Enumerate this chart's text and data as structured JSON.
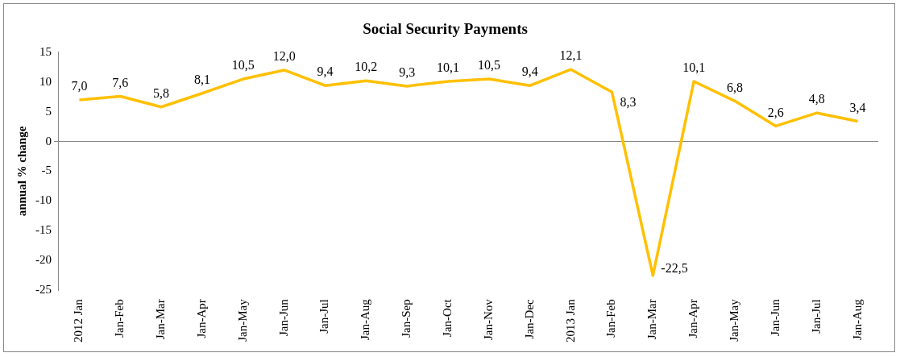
{
  "chart_data": {
    "type": "line",
    "title": "Social Security Payments",
    "ylabel": "annual % change",
    "categories": [
      "2012 Jan",
      "Jan-Feb",
      "Jan-Mar",
      "Jan-Apr",
      "Jan-May",
      "Jan-Jun",
      "Jan-Jul",
      "Jan-Aug",
      "Jan-Sep",
      "Jan-Oct",
      "Jan-Nov",
      "Jan-Dec",
      "2013 Jan",
      "Jan-Feb",
      "Jan-Mar",
      "Jan-Apr",
      "Jan-May",
      "Jan-Jun",
      "Jan-Jul",
      "Jan-Aug"
    ],
    "series": [
      {
        "color": "#ffc000",
        "values": [
          7.0,
          7.6,
          5.8,
          8.1,
          10.5,
          12.0,
          9.4,
          10.2,
          9.3,
          10.1,
          10.5,
          9.4,
          12.1,
          8.3,
          -22.5,
          10.1,
          6.8,
          2.6,
          4.8,
          3.4
        ],
        "value_labels": [
          "7,0",
          "7,6",
          "5,8",
          "8,1",
          "10,5",
          "12,0",
          "9,4",
          "10,2",
          "9,3",
          "10,1",
          "10,5",
          "9,4",
          "12,1",
          "8,3",
          "-22,5",
          "10,1",
          "6,8",
          "2,6",
          "4,8",
          "3,4"
        ]
      }
    ],
    "ylim": [
      -25,
      15
    ],
    "yticks": [
      -25,
      -20,
      -15,
      -10,
      -5,
      0,
      5,
      10,
      15
    ],
    "marker": "none",
    "line_style": "solid"
  }
}
